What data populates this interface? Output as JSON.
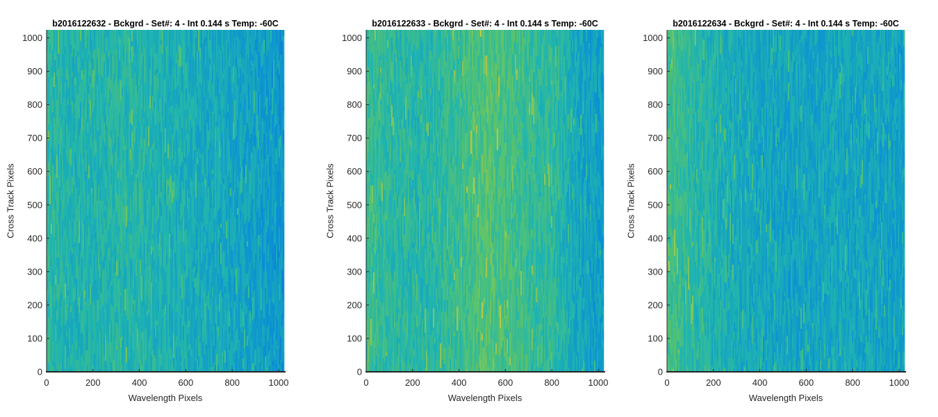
{
  "chart_data": [
    {
      "type": "heatmap",
      "title": "b2016122632 - Bckgrd - Set#: 4 - Int 0.144 s Temp: -60C",
      "xlabel": "Wavelength Pixels",
      "ylabel": "Cross Track Pixels",
      "xlim": [
        0,
        1024
      ],
      "ylim": [
        0,
        1024
      ],
      "xticks": [
        "0",
        "200",
        "400",
        "600",
        "800",
        "1000"
      ],
      "yticks": [
        "0",
        "100",
        "200",
        "300",
        "400",
        "500",
        "600",
        "700",
        "800",
        "900",
        "1000"
      ],
      "column_intensity_profile": [
        0.55,
        0.5,
        0.5,
        0.52,
        0.52,
        0.48,
        0.45,
        0.42,
        0.38,
        0.35,
        0.3
      ],
      "colormap": [
        "#1f5fd6",
        "#0a8fd4",
        "#1fb4b0",
        "#5cc46a",
        "#d8c83a"
      ]
    },
    {
      "type": "heatmap",
      "title": "b2016122633 - Bckgrd - Set#: 4 - Int 0.144 s Temp: -60C",
      "xlabel": "Wavelength Pixels",
      "ylabel": "Cross Track Pixels",
      "xlim": [
        0,
        1024
      ],
      "ylim": [
        0,
        1024
      ],
      "xticks": [
        "0",
        "200",
        "400",
        "600",
        "800",
        "1000"
      ],
      "yticks": [
        "0",
        "100",
        "200",
        "300",
        "400",
        "500",
        "600",
        "700",
        "800",
        "900",
        "1000"
      ],
      "column_intensity_profile": [
        0.6,
        0.55,
        0.52,
        0.55,
        0.62,
        0.7,
        0.66,
        0.58,
        0.55,
        0.4,
        0.34
      ],
      "colormap": [
        "#1f5fd6",
        "#0a8fd4",
        "#1fb4b0",
        "#5cc46a",
        "#d8c83a"
      ]
    },
    {
      "type": "heatmap",
      "title": "b2016122634 - Bckgrd - Set#: 4 - Int 0.144 s Temp: -60C",
      "xlabel": "Wavelength Pixels",
      "ylabel": "Cross Track Pixels",
      "xlim": [
        0,
        1024
      ],
      "ylim": [
        0,
        1024
      ],
      "xticks": [
        "0",
        "200",
        "400",
        "600",
        "800",
        "1000"
      ],
      "yticks": [
        "0",
        "100",
        "200",
        "300",
        "400",
        "500",
        "600",
        "700",
        "800",
        "900",
        "1000"
      ],
      "column_intensity_profile": [
        0.65,
        0.55,
        0.48,
        0.43,
        0.4,
        0.38,
        0.38,
        0.4,
        0.4,
        0.38,
        0.36
      ],
      "colormap": [
        "#1f5fd6",
        "#0a8fd4",
        "#1fb4b0",
        "#5cc46a",
        "#d8c83a"
      ]
    }
  ]
}
